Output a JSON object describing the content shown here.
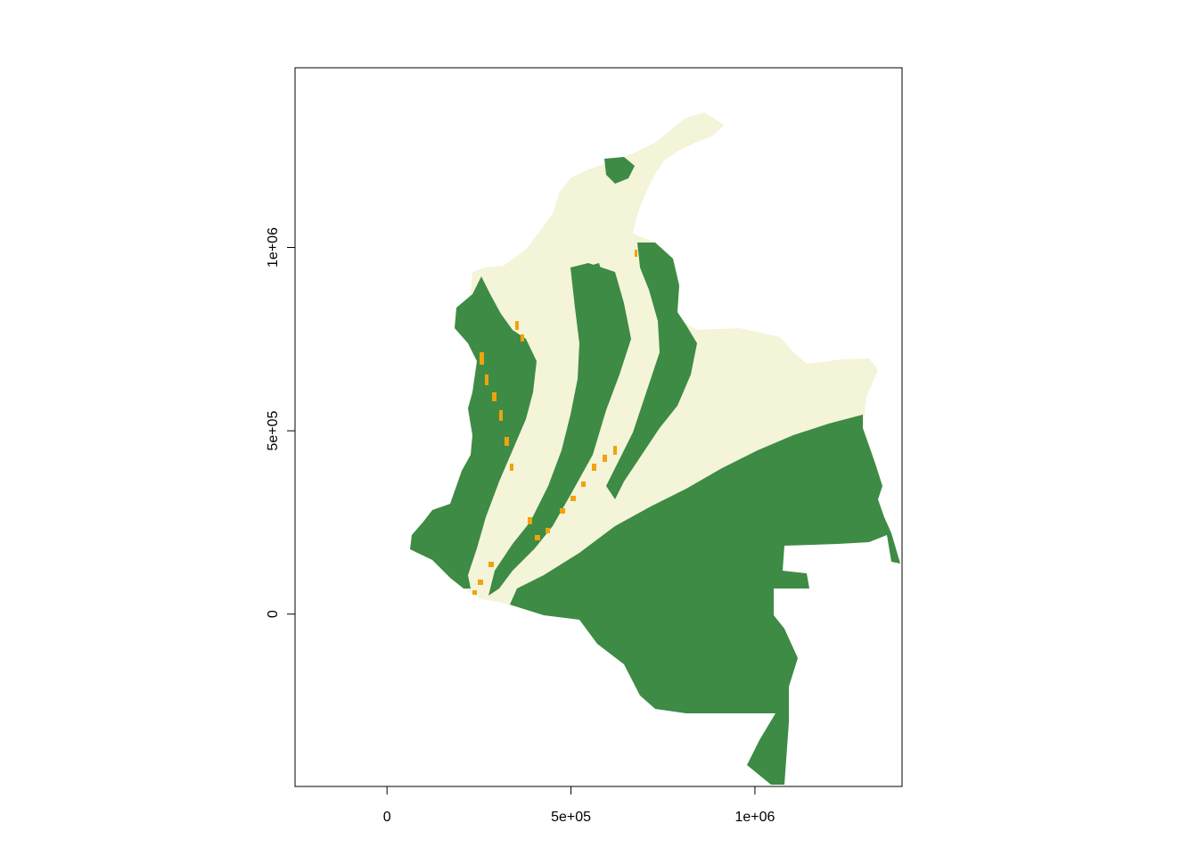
{
  "chart_data": {
    "type": "raster-map",
    "title": "",
    "xlabel": "",
    "ylabel": "",
    "xlim": [
      -250000,
      1400000
    ],
    "ylim": [
      -470000,
      1490000
    ],
    "x_ticks": [
      {
        "value": 0,
        "label": "0"
      },
      {
        "value": 500000,
        "label": "5e+05"
      },
      {
        "value": 1000000,
        "label": "1e+06"
      }
    ],
    "y_ticks": [
      {
        "value": 0,
        "label": "0"
      },
      {
        "value": 500000,
        "label": "5e+05"
      },
      {
        "value": 1000000,
        "label": "1e+06"
      }
    ],
    "legend": "none",
    "grid": false,
    "colors": {
      "class_light": "#f3f4d8",
      "class_forest": "#3d8b45",
      "class_orange": "#f2a20c",
      "axes": "#000000",
      "background": "#ffffff"
    }
  }
}
